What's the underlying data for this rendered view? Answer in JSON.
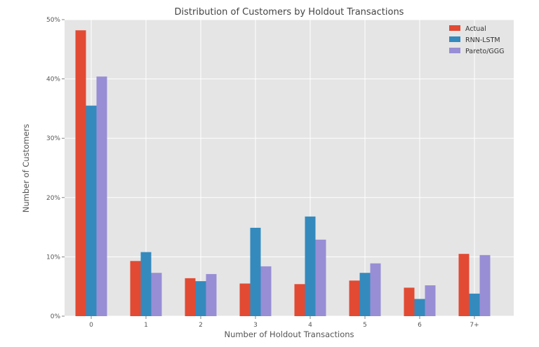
{
  "chart_data": {
    "type": "bar",
    "title": "Distribution of Customers by Holdout Transactions",
    "xlabel": "Number of Holdout Transactions",
    "ylabel": "Number of Customers",
    "categories": [
      "0",
      "1",
      "2",
      "3",
      "4",
      "5",
      "6",
      "7+"
    ],
    "series": [
      {
        "name": "Actual",
        "color": "#E24A33",
        "values": [
          48.2,
          9.3,
          6.4,
          5.5,
          5.4,
          6.0,
          4.8,
          10.5
        ]
      },
      {
        "name": "RNN-LSTM",
        "color": "#348ABD",
        "values": [
          35.5,
          10.8,
          5.9,
          14.9,
          16.8,
          7.3,
          2.9,
          3.8
        ]
      },
      {
        "name": "Pareto/GGG",
        "color": "#988ED5",
        "values": [
          40.4,
          7.3,
          7.1,
          8.4,
          12.9,
          8.9,
          5.2,
          10.3
        ]
      }
    ],
    "ylim": [
      0,
      50
    ],
    "yticks": [
      0,
      10,
      20,
      30,
      40,
      50
    ],
    "ytick_labels": [
      "0%",
      "10%",
      "20%",
      "30%",
      "40%",
      "50%"
    ],
    "grid": true,
    "background": "#E5E5E5",
    "legend_position": "top-right"
  }
}
